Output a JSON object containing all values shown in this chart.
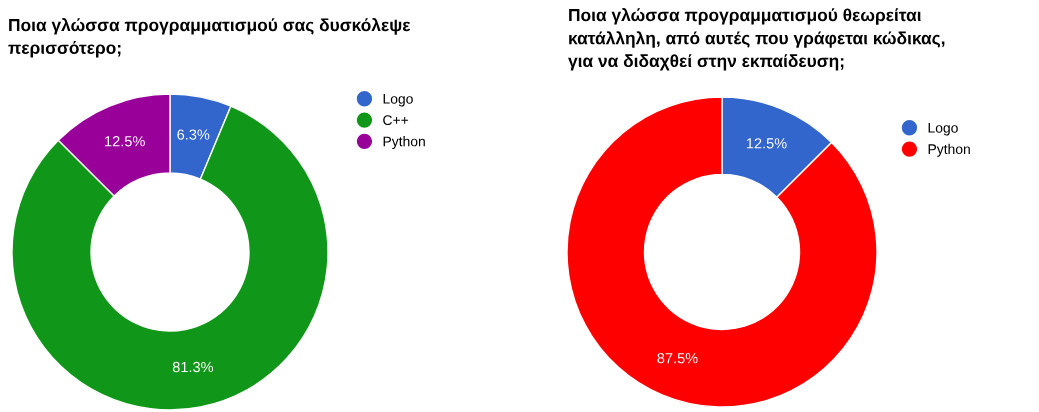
{
  "chart_data": [
    {
      "type": "donut",
      "title": "Ποια γλώσσα προγραμματισμού σας δυσκόλεψε\nπερισσότερο;",
      "categories": [
        "Logo",
        "C++",
        "Python"
      ],
      "values": [
        6.3,
        81.3,
        12.5
      ],
      "colors": [
        "#3366cc",
        "#109618",
        "#990099"
      ],
      "value_labels": [
        "6.3%",
        "81.3%",
        "12.5%"
      ],
      "legend": "top right"
    },
    {
      "type": "donut",
      "title": "Ποια γλώσσα προγραμματισμού θεωρείται\nκατάλληλη, από αυτές που γράφεται κώδικας,\nγια να διδαχθεί στην εκπαίδευση;",
      "categories": [
        "Logo",
        "Python"
      ],
      "values": [
        12.5,
        87.5
      ],
      "colors": [
        "#3366cc",
        "#ff0000"
      ],
      "value_labels": [
        "12.5%",
        "87.5%"
      ],
      "legend": "top right"
    }
  ]
}
